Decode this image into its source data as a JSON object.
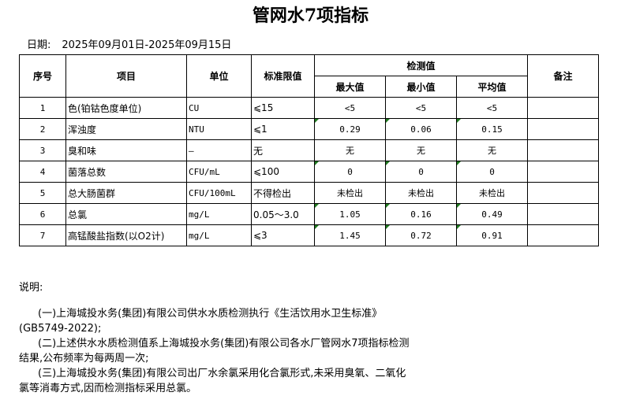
{
  "title": "管网水7项指标",
  "date": {
    "label": "日期:",
    "value": "2025年09月01日-2025年09月15日"
  },
  "table": {
    "headers": {
      "no": "序号",
      "item": "项目",
      "unit": "单位",
      "limit": "标准限值",
      "measured": "检测值",
      "max": "最大值",
      "min": "最小值",
      "avg": "平均值",
      "remark": "备注"
    },
    "rows": [
      {
        "no": "1",
        "item": "色(铂钴色度单位)",
        "unit": "CU",
        "limit": "⩽15",
        "max": "<5",
        "min": "<5",
        "avg": "<5",
        "remark": "",
        "flag": false
      },
      {
        "no": "2",
        "item": "浑浊度",
        "unit": "NTU",
        "limit": "⩽1",
        "max": "0.29",
        "min": "0.06",
        "avg": "0.15",
        "remark": "",
        "flag": true
      },
      {
        "no": "3",
        "item": "臭和味",
        "unit": "—",
        "limit": "无",
        "max": "无",
        "min": "无",
        "avg": "无",
        "remark": "",
        "flag": false
      },
      {
        "no": "4",
        "item": "菌落总数",
        "unit": "CFU/mL",
        "limit": "⩽100",
        "max": "0",
        "min": "0",
        "avg": "0",
        "remark": "",
        "flag": true
      },
      {
        "no": "5",
        "item": "总大肠菌群",
        "unit": "CFU/100mL",
        "limit": "不得检出",
        "max": "未检出",
        "min": "未检出",
        "avg": "未检出",
        "remark": "",
        "flag": false
      },
      {
        "no": "6",
        "item": "总氯",
        "unit": "mg/L",
        "limit": "0.05～3.0",
        "max": "1.05",
        "min": "0.16",
        "avg": "0.49",
        "remark": "",
        "flag": true
      },
      {
        "no": "7",
        "item": "高锰酸盐指数(以O2计)",
        "unit": "mg/L",
        "limit": "⩽3",
        "max": "1.45",
        "min": "0.72",
        "avg": "0.91",
        "remark": "",
        "flag": true
      }
    ],
    "flag_color": "#1f7a1f"
  },
  "notes": {
    "heading": "说明:",
    "items": [
      "(一)上海城投水务(集团)有限公司供水水质检测执行《生活饮用水卫生标准》(GB5749-2022);",
      "(二)上述供水水质检测值系上海城投水务(集团)有限公司各水厂管网水7项指标检测结果,公布频率为每两周一次;",
      "(三)上海城投水务(集团)有限公司出厂水余氯采用化合氯形式,未采用臭氧、二氧化氯等消毒方式,因而检测指标采用总氯。"
    ]
  }
}
